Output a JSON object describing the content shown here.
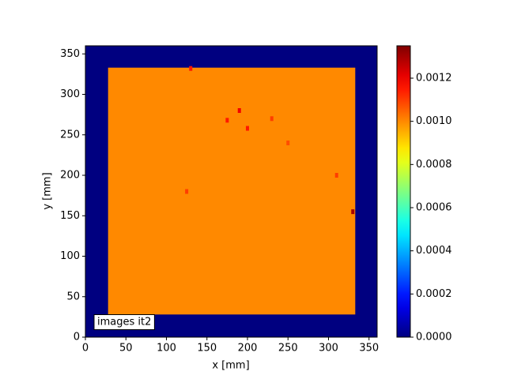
{
  "chart_data": {
    "type": "heatmap",
    "colormap": "jet",
    "xlabel": "x [mm]",
    "ylabel": "y [mm]",
    "xlim": [
      0,
      360
    ],
    "ylim": [
      0,
      360
    ],
    "xticks": [
      0,
      50,
      100,
      150,
      200,
      250,
      300,
      350
    ],
    "yticks": [
      0,
      50,
      100,
      150,
      200,
      250,
      300,
      350
    ],
    "clim": [
      0,
      0.00135
    ],
    "cticks": [
      {
        "value": 0,
        "label": "0.0000"
      },
      {
        "value": 0.0002,
        "label": "0.0002"
      },
      {
        "value": 0.0004,
        "label": "0.0004"
      },
      {
        "value": 0.0006,
        "label": "0.0006"
      },
      {
        "value": 0.0008,
        "label": "0.0008"
      },
      {
        "value": 0.001,
        "label": "0.0010"
      },
      {
        "value": 0.0012,
        "label": "0.0012"
      }
    ],
    "regions": [
      {
        "x": [
          0,
          360
        ],
        "y": [
          0,
          360
        ],
        "value": 0
      },
      {
        "x": [
          28,
          333
        ],
        "y": [
          28,
          333
        ],
        "value": 0.001
      }
    ],
    "spots": [
      {
        "x": 190,
        "y": 280,
        "value": 0.0012
      },
      {
        "x": 175,
        "y": 268,
        "value": 0.00115
      },
      {
        "x": 200,
        "y": 258,
        "value": 0.00115
      },
      {
        "x": 130,
        "y": 332,
        "value": 0.00115
      },
      {
        "x": 230,
        "y": 270,
        "value": 0.0011
      },
      {
        "x": 125,
        "y": 180,
        "value": 0.0011
      },
      {
        "x": 330,
        "y": 155,
        "value": 0.0013
      },
      {
        "x": 310,
        "y": 200,
        "value": 0.0011
      },
      {
        "x": 250,
        "y": 240,
        "value": 0.00108
      }
    ],
    "annotation": "images it2"
  }
}
